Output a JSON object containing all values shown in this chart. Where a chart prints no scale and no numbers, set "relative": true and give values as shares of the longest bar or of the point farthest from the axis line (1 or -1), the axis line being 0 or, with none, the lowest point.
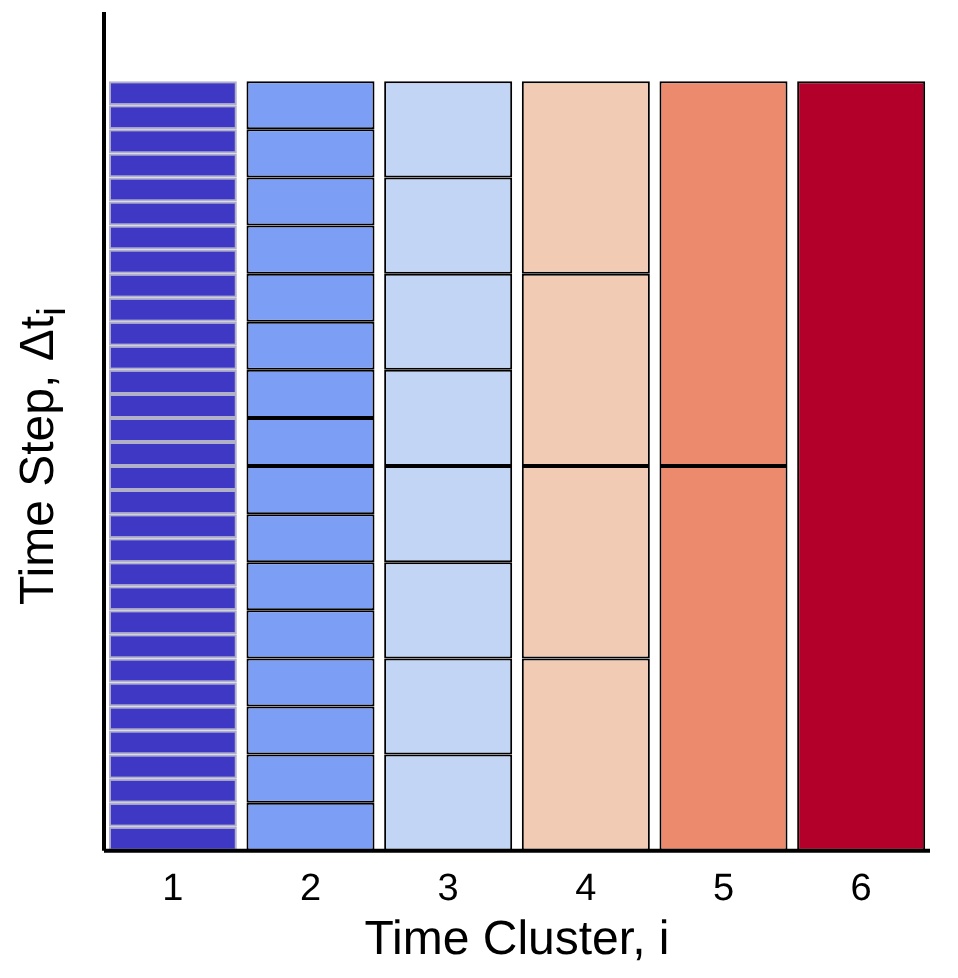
{
  "chart_data": {
    "type": "bar",
    "stacked": true,
    "relative": true,
    "xlabel": "Time Cluster, i",
    "ylabel": "Time Step, Δt$_{i}$",
    "categories": [
      "1",
      "2",
      "3",
      "4",
      "5",
      "6"
    ],
    "series": [
      {
        "colors": [
          "#3e38c4",
          "#7d9ef5",
          "#c2d5f5",
          "#f2cbb5",
          "#ec8a6e",
          "#b2002a"
        ],
        "values": [
          0.03125,
          0.0625,
          0.125,
          0.25,
          0.5,
          1
        ]
      },
      {
        "colors": [
          "#3e38c4",
          "#7d9ef5",
          "#c2d5f5",
          "#f2cbb5",
          "#ec8a6e",
          null
        ],
        "values": [
          0.03125,
          0.0625,
          0.125,
          0.25,
          0.5,
          null
        ]
      },
      {
        "colors": [
          "#3e38c4",
          "#7d9ef5",
          "#c2d5f5",
          "#f2cbb5",
          null,
          null
        ],
        "values": [
          0.03125,
          0.0625,
          0.125,
          0.25,
          null,
          null
        ]
      },
      {
        "colors": [
          "#3e38c4",
          "#7d9ef5",
          "#c2d5f5",
          "#f2cbb5",
          null,
          null
        ],
        "values": [
          0.03125,
          0.0625,
          0.125,
          0.25,
          null,
          null
        ]
      },
      {
        "colors": [
          "#3e38c4",
          "#7d9ef5",
          "#c2d5f5",
          null,
          null,
          null
        ],
        "values": [
          0.03125,
          0.0625,
          0.125,
          null,
          null,
          null
        ]
      },
      {
        "colors": [
          "#3e38c4",
          "#7d9ef5",
          "#c2d5f5",
          null,
          null,
          null
        ],
        "values": [
          0.03125,
          0.0625,
          0.125,
          null,
          null,
          null
        ]
      },
      {
        "colors": [
          "#3e38c4",
          "#7d9ef5",
          "#c2d5f5",
          null,
          null,
          null
        ],
        "values": [
          0.03125,
          0.0625,
          0.125,
          null,
          null,
          null
        ]
      },
      {
        "colors": [
          "#3e38c4",
          "#7d9ef5",
          "#c2d5f5",
          null,
          null,
          null
        ],
        "values": [
          0.03125,
          0.0625,
          0.125,
          null,
          null,
          null
        ]
      },
      {
        "colors": [
          "#3e38c4",
          "#7d9ef5",
          null,
          null,
          null,
          null
        ],
        "values": [
          0.03125,
          0.0625,
          null,
          null,
          null,
          null
        ]
      },
      {
        "colors": [
          "#3e38c4",
          "#7d9ef5",
          null,
          null,
          null,
          null
        ],
        "values": [
          0.03125,
          0.0625,
          null,
          null,
          null,
          null
        ]
      },
      {
        "colors": [
          "#3e38c4",
          "#7d9ef5",
          null,
          null,
          null,
          null
        ],
        "values": [
          0.03125,
          0.0625,
          null,
          null,
          null,
          null
        ]
      },
      {
        "colors": [
          "#3e38c4",
          "#7d9ef5",
          null,
          null,
          null,
          null
        ],
        "values": [
          0.03125,
          0.0625,
          null,
          null,
          null,
          null
        ]
      },
      {
        "colors": [
          "#3e38c4",
          "#7d9ef5",
          null,
          null,
          null,
          null
        ],
        "values": [
          0.03125,
          0.0625,
          null,
          null,
          null,
          null
        ]
      },
      {
        "colors": [
          "#3e38c4",
          "#7d9ef5",
          null,
          null,
          null,
          null
        ],
        "values": [
          0.03125,
          0.0625,
          null,
          null,
          null,
          null
        ]
      },
      {
        "colors": [
          "#3e38c4",
          "#7d9ef5",
          null,
          null,
          null,
          null
        ],
        "values": [
          0.03125,
          0.0625,
          null,
          null,
          null,
          null
        ]
      },
      {
        "colors": [
          "#3e38c4",
          "#7d9ef5",
          null,
          null,
          null,
          null
        ],
        "values": [
          0.03125,
          0.0625,
          null,
          null,
          null,
          null
        ]
      },
      {
        "colors": [
          "#3e38c4",
          null,
          null,
          null,
          null,
          null
        ],
        "values": [
          0.03125,
          null,
          null,
          null,
          null,
          null
        ]
      },
      {
        "colors": [
          "#3e38c4",
          null,
          null,
          null,
          null,
          null
        ],
        "values": [
          0.03125,
          null,
          null,
          null,
          null,
          null
        ]
      },
      {
        "colors": [
          "#3e38c4",
          null,
          null,
          null,
          null,
          null
        ],
        "values": [
          0.03125,
          null,
          null,
          null,
          null,
          null
        ]
      },
      {
        "colors": [
          "#3e38c4",
          null,
          null,
          null,
          null,
          null
        ],
        "values": [
          0.03125,
          null,
          null,
          null,
          null,
          null
        ]
      },
      {
        "colors": [
          "#3e38c4",
          null,
          null,
          null,
          null,
          null
        ],
        "values": [
          0.03125,
          null,
          null,
          null,
          null,
          null
        ]
      },
      {
        "colors": [
          "#3e38c4",
          null,
          null,
          null,
          null,
          null
        ],
        "values": [
          0.03125,
          null,
          null,
          null,
          null,
          null
        ]
      },
      {
        "colors": [
          "#3e38c4",
          null,
          null,
          null,
          null,
          null
        ],
        "values": [
          0.03125,
          null,
          null,
          null,
          null,
          null
        ]
      },
      {
        "colors": [
          "#3e38c4",
          null,
          null,
          null,
          null,
          null
        ],
        "values": [
          0.03125,
          null,
          null,
          null,
          null,
          null
        ]
      },
      {
        "colors": [
          "#3e38c4",
          null,
          null,
          null,
          null,
          null
        ],
        "values": [
          0.03125,
          null,
          null,
          null,
          null,
          null
        ]
      },
      {
        "colors": [
          "#3e38c4",
          null,
          null,
          null,
          null,
          null
        ],
        "values": [
          0.03125,
          null,
          null,
          null,
          null,
          null
        ]
      },
      {
        "colors": [
          "#3e38c4",
          null,
          null,
          null,
          null,
          null
        ],
        "values": [
          0.03125,
          null,
          null,
          null,
          null,
          null
        ]
      },
      {
        "colors": [
          "#3e38c4",
          null,
          null,
          null,
          null,
          null
        ],
        "values": [
          0.03125,
          null,
          null,
          null,
          null,
          null
        ]
      },
      {
        "colors": [
          "#3e38c4",
          null,
          null,
          null,
          null,
          null
        ],
        "values": [
          0.03125,
          null,
          null,
          null,
          null,
          null
        ]
      },
      {
        "colors": [
          "#3e38c4",
          null,
          null,
          null,
          null,
          null
        ],
        "values": [
          0.03125,
          null,
          null,
          null,
          null,
          null
        ]
      },
      {
        "colors": [
          "#3e38c4",
          null,
          null,
          null,
          null,
          null
        ],
        "values": [
          0.03125,
          null,
          null,
          null,
          null,
          null
        ]
      },
      {
        "colors": [
          "#3e38c4",
          null,
          null,
          null,
          null,
          null
        ],
        "values": [
          0.03125,
          null,
          null,
          null,
          null,
          null
        ]
      }
    ]
  }
}
